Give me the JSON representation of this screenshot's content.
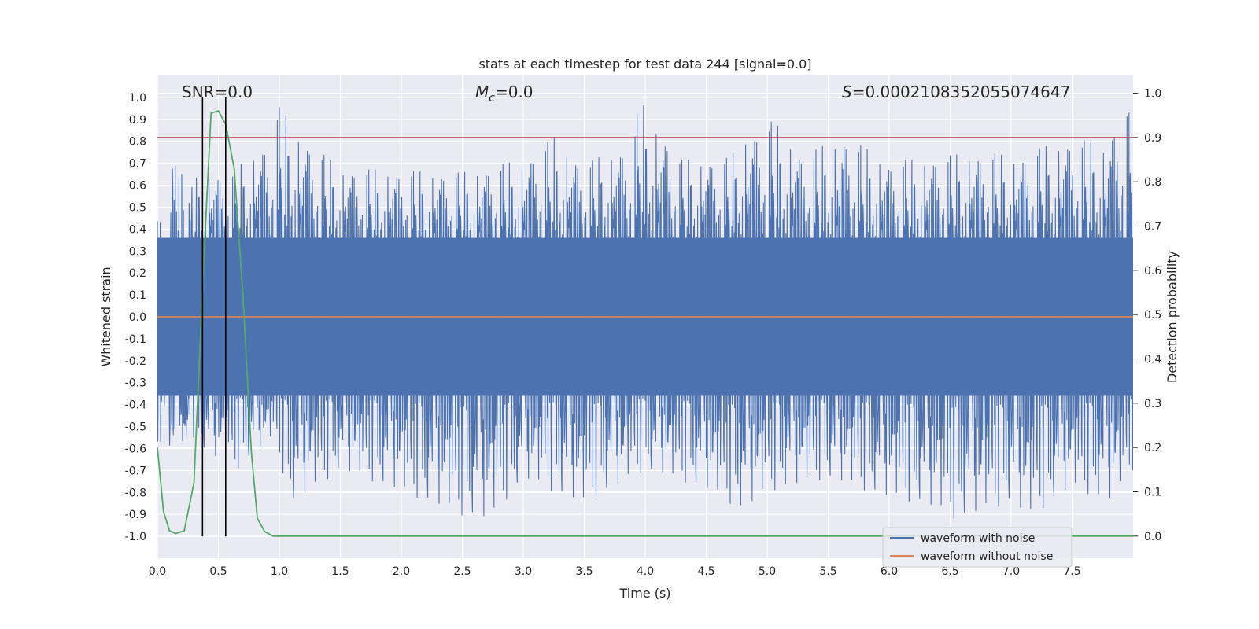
{
  "chart_data": {
    "type": "line",
    "title": "stats at each timestep for test data 244 [signal=0.0]",
    "xlabel": "Time (s)",
    "ylabel": "Whitened strain",
    "y2label": "Detection probability",
    "xlim": [
      0.0,
      8.0
    ],
    "ylim": [
      -1.1,
      1.1
    ],
    "y2lim": [
      -0.05,
      1.04
    ],
    "xticks": [
      0.0,
      0.5,
      1.0,
      1.5,
      2.0,
      2.5,
      3.0,
      3.5,
      4.0,
      4.5,
      5.0,
      5.5,
      6.0,
      6.5,
      7.0,
      7.5
    ],
    "xtick_labels": [
      "0.0",
      "0.5",
      "1.0",
      "1.5",
      "2.0",
      "2.5",
      "3.0",
      "3.5",
      "4.0",
      "4.5",
      "5.0",
      "5.5",
      "6.0",
      "6.5",
      "7.0",
      "7.5"
    ],
    "yticks": [
      1.0,
      0.9,
      0.8,
      0.7,
      0.6,
      0.5,
      0.4,
      0.3,
      0.2,
      0.1,
      0.0,
      -0.1,
      -0.2,
      -0.3,
      -0.4,
      -0.5,
      -0.6,
      -0.7,
      -0.8,
      -0.9,
      -1.0
    ],
    "ytick_labels": [
      "1.0",
      "0.9",
      "0.8",
      "0.7",
      "0.6",
      "0.5",
      "0.4",
      "0.3",
      "0.2",
      "0.1",
      "0.0",
      "-0.1",
      "-0.2",
      "-0.3",
      "-0.4",
      "-0.5",
      "-0.6",
      "-0.7",
      "-0.8",
      "-0.9",
      "-1.0"
    ],
    "y2ticks": [
      1.0,
      0.9,
      0.8,
      0.7,
      0.6,
      0.5,
      0.4,
      0.3,
      0.2,
      0.1,
      0.0
    ],
    "y2tick_labels": [
      "1.0",
      "0.9",
      "0.8",
      "0.7",
      "0.6",
      "0.5",
      "0.4",
      "0.3",
      "0.2",
      "0.1",
      "0.0"
    ],
    "grid": true,
    "legend_position": "bottom-right",
    "annotations": {
      "snr": "SNR=0.0",
      "mc": "M",
      "mc_sub": "c",
      "mc_value": "=0.0",
      "s_symbol": "S",
      "s_value": "=0.0002108352055074647"
    },
    "series": [
      {
        "name": "waveform with noise",
        "color": "#4c72b0",
        "description_values": "dense noise trace, approx. uniform band between -0.45 and 0.45 with spikes reaching about -0.93 and 1.0",
        "envelope_upper": [
          [
            0.0,
            0.62
          ],
          [
            0.05,
            0.78
          ],
          [
            0.3,
            0.63
          ],
          [
            0.38,
            0.66
          ],
          [
            0.6,
            0.66
          ],
          [
            0.95,
            0.83
          ],
          [
            0.99,
            0.97
          ],
          [
            1.18,
            0.83
          ],
          [
            1.5,
            0.68
          ],
          [
            2.0,
            0.67
          ],
          [
            2.5,
            0.66
          ],
          [
            3.0,
            0.72
          ],
          [
            3.25,
            0.82
          ],
          [
            3.5,
            0.7
          ],
          [
            3.9,
            0.8
          ],
          [
            3.95,
            1.0
          ],
          [
            4.3,
            0.72
          ],
          [
            4.7,
            0.73
          ],
          [
            4.83,
            0.84
          ],
          [
            5.05,
            0.9
          ],
          [
            5.3,
            0.74
          ],
          [
            5.63,
            0.83
          ],
          [
            6.0,
            0.71
          ],
          [
            6.5,
            0.74
          ],
          [
            6.8,
            0.76
          ],
          [
            7.0,
            0.73
          ],
          [
            7.5,
            0.82
          ],
          [
            7.78,
            0.79
          ],
          [
            7.93,
            1.0
          ],
          [
            8.0,
            0.88
          ]
        ],
        "envelope_lower": [
          [
            0.0,
            -0.58
          ],
          [
            0.05,
            -0.63
          ],
          [
            0.3,
            -0.55
          ],
          [
            0.4,
            -0.62
          ],
          [
            0.65,
            -0.7
          ],
          [
            0.95,
            -0.55
          ],
          [
            1.1,
            -0.86
          ],
          [
            1.5,
            -0.7
          ],
          [
            2.0,
            -0.8
          ],
          [
            2.5,
            -0.91
          ],
          [
            2.73,
            -0.93
          ],
          [
            3.0,
            -0.74
          ],
          [
            3.5,
            -0.86
          ],
          [
            4.0,
            -0.7
          ],
          [
            4.5,
            -0.79
          ],
          [
            4.8,
            -0.89
          ],
          [
            5.0,
            -0.8
          ],
          [
            5.5,
            -0.74
          ],
          [
            6.0,
            -0.83
          ],
          [
            6.3,
            -0.86
          ],
          [
            6.55,
            -0.93
          ],
          [
            7.0,
            -0.85
          ],
          [
            7.15,
            -0.92
          ],
          [
            7.5,
            -0.78
          ],
          [
            7.8,
            -0.85
          ],
          [
            8.0,
            -0.7
          ]
        ]
      },
      {
        "name": "waveform without noise",
        "color": "#dd8452",
        "x": [
          0.0,
          8.0
        ],
        "y": [
          0.0,
          0.0
        ]
      },
      {
        "name": "",
        "color": "#55a868",
        "axis": "right",
        "x": [
          0.0,
          0.05,
          0.1,
          0.15,
          0.22,
          0.3,
          0.38,
          0.44,
          0.5,
          0.56,
          0.63,
          0.7,
          0.77,
          0.82,
          0.88,
          0.95,
          1.0,
          2.0,
          3.0,
          4.0,
          5.0,
          6.0,
          7.0,
          8.0
        ],
        "y": [
          0.2,
          0.055,
          0.012,
          0.006,
          0.012,
          0.12,
          0.62,
          0.955,
          0.96,
          0.93,
          0.83,
          0.55,
          0.19,
          0.04,
          0.01,
          0.0,
          0.0,
          0.0,
          0.0,
          0.0,
          0.0,
          0.0,
          0.0,
          0.0
        ]
      }
    ],
    "hlines": [
      {
        "axis": "right",
        "y": 0.9,
        "color": "#c44e52"
      }
    ],
    "vlines": [
      {
        "x": 0.37,
        "color": "#000000"
      },
      {
        "x": 0.56,
        "color": "#000000"
      }
    ]
  }
}
